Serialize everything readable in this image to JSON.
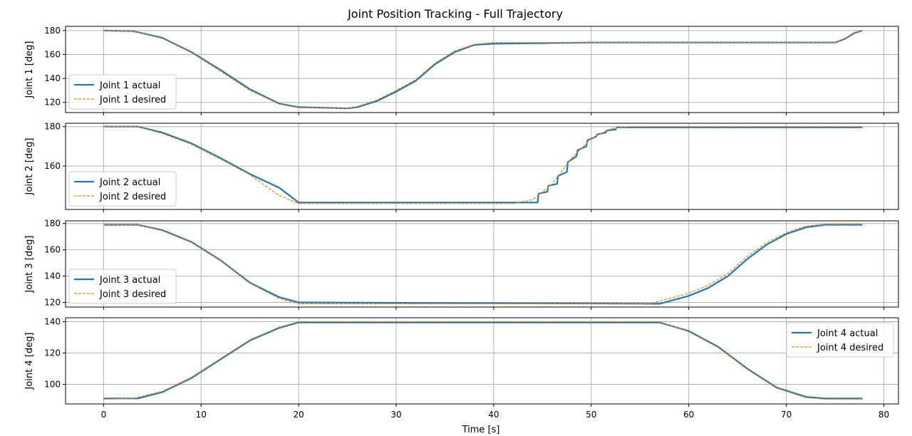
{
  "chart_data": {
    "type": "line",
    "title": "Joint Position Tracking - Full Trajectory",
    "xlabel": "Time [s]",
    "xlim": [
      -3.9,
      81.5
    ],
    "xticks": [
      0,
      10,
      20,
      30,
      40,
      50,
      60,
      70,
      80
    ],
    "grid": true,
    "colors": {
      "actual": "#1f77b4",
      "desired": "#ff7f0e",
      "grid": "#b0b0b0"
    },
    "panels": [
      {
        "ylabel": "Joint 1 [deg]",
        "ylim": [
          111.5,
          183.5
        ],
        "yticks": [
          120,
          140,
          160,
          180
        ],
        "legend_loc": "lower-left",
        "series": [
          {
            "name": "Joint 1 actual",
            "style": "solid",
            "points": [
              [
                0,
                180
              ],
              [
                3,
                179.5
              ],
              [
                6,
                174
              ],
              [
                9,
                162
              ],
              [
                12,
                147
              ],
              [
                15,
                131
              ],
              [
                18,
                119
              ],
              [
                20,
                116
              ],
              [
                25,
                115
              ],
              [
                26,
                116
              ],
              [
                28,
                121
              ],
              [
                30,
                129
              ],
              [
                32,
                138
              ],
              [
                34,
                152
              ],
              [
                36,
                162
              ],
              [
                38,
                168
              ],
              [
                40,
                169
              ],
              [
                50,
                170
              ],
              [
                75,
                170
              ],
              [
                76,
                173
              ],
              [
                77,
                178
              ],
              [
                77.8,
                180
              ]
            ]
          },
          {
            "name": "Joint 1 desired",
            "style": "dashed",
            "points": [
              [
                0,
                180
              ],
              [
                3,
                179.5
              ],
              [
                6,
                173.5
              ],
              [
                9,
                161.5
              ],
              [
                12,
                146
              ],
              [
                15,
                130
              ],
              [
                18,
                118.5
              ],
              [
                20,
                115.5
              ],
              [
                25,
                115
              ],
              [
                26,
                116.5
              ],
              [
                28,
                122
              ],
              [
                30,
                130
              ],
              [
                32,
                139
              ],
              [
                34,
                153
              ],
              [
                36,
                163
              ],
              [
                38,
                168.5
              ],
              [
                40,
                170
              ],
              [
                50,
                170
              ],
              [
                75,
                170
              ],
              [
                76,
                173.5
              ],
              [
                77,
                178.5
              ],
              [
                77.8,
                180
              ]
            ]
          }
        ]
      },
      {
        "ylabel": "Joint 2 [deg]",
        "ylim": [
          138,
          181.7
        ],
        "yticks": [
          160,
          180
        ],
        "legend_loc": "lower-left",
        "series": [
          {
            "name": "Joint 2 actual",
            "style": "solid",
            "points": [
              [
                0,
                180
              ],
              [
                3.5,
                180
              ],
              [
                6,
                177
              ],
              [
                9,
                171.5
              ],
              [
                12,
                164
              ],
              [
                15,
                156
              ],
              [
                18,
                149
              ],
              [
                20,
                141.5
              ],
              [
                44.5,
                141.5
              ],
              [
                44.6,
                146
              ],
              [
                45.5,
                147
              ],
              [
                45.6,
                150
              ],
              [
                46.5,
                151
              ],
              [
                46.6,
                155
              ],
              [
                47.5,
                157
              ],
              [
                47.6,
                162
              ],
              [
                48.5,
                165
              ],
              [
                48.6,
                168
              ],
              [
                49.5,
                170
              ],
              [
                49.6,
                173
              ],
              [
                50.5,
                175
              ],
              [
                50.6,
                176
              ],
              [
                51.5,
                177
              ],
              [
                51.6,
                178
              ],
              [
                52.5,
                178.5
              ],
              [
                52.6,
                179.6
              ],
              [
                77.8,
                179.6
              ]
            ]
          },
          {
            "name": "Joint 2 desired",
            "style": "dashed",
            "points": [
              [
                0,
                180
              ],
              [
                3.5,
                180
              ],
              [
                6,
                176.5
              ],
              [
                9,
                171
              ],
              [
                12,
                163.5
              ],
              [
                15,
                155.5
              ],
              [
                18,
                145
              ],
              [
                20,
                141
              ],
              [
                42,
                141
              ],
              [
                44,
                143
              ],
              [
                46,
                151
              ],
              [
                48,
                164
              ],
              [
                50,
                174
              ],
              [
                52,
                179
              ],
              [
                54,
                180
              ],
              [
                77.8,
                180
              ]
            ]
          }
        ]
      },
      {
        "ylabel": "Joint 3 [deg]",
        "ylim": [
          116.5,
          182
        ],
        "yticks": [
          120,
          140,
          160,
          180
        ],
        "legend_loc": "lower-left",
        "series": [
          {
            "name": "Joint 3 actual",
            "style": "solid",
            "points": [
              [
                0,
                179
              ],
              [
                3.5,
                179
              ],
              [
                6,
                175
              ],
              [
                9,
                166
              ],
              [
                12,
                152
              ],
              [
                15,
                135
              ],
              [
                18,
                124
              ],
              [
                20,
                120
              ],
              [
                57,
                119
              ],
              [
                58,
                121
              ],
              [
                60,
                125
              ],
              [
                62,
                131
              ],
              [
                64,
                140
              ],
              [
                66,
                153
              ],
              [
                68,
                164
              ],
              [
                70,
                172
              ],
              [
                72,
                177
              ],
              [
                74,
                179
              ],
              [
                77.8,
                179
              ]
            ]
          },
          {
            "name": "Joint 3 desired",
            "style": "dashed",
            "points": [
              [
                0,
                179
              ],
              [
                3.5,
                179
              ],
              [
                6,
                174.5
              ],
              [
                9,
                165.5
              ],
              [
                12,
                151.5
              ],
              [
                15,
                134.5
              ],
              [
                18,
                123
              ],
              [
                20,
                119
              ],
              [
                56,
                119
              ],
              [
                58,
                123
              ],
              [
                60,
                127
              ],
              [
                62,
                133
              ],
              [
                64,
                142
              ],
              [
                66,
                155
              ],
              [
                68,
                165.5
              ],
              [
                70,
                173
              ],
              [
                72,
                178
              ],
              [
                74,
                179.5
              ],
              [
                77.8,
                179.5
              ]
            ]
          }
        ]
      },
      {
        "ylabel": "Joint 4 [deg]",
        "ylim": [
          87.5,
          142.5
        ],
        "yticks": [
          100,
          120,
          140
        ],
        "legend_loc": "top-right",
        "series": [
          {
            "name": "Joint 4 actual",
            "style": "solid",
            "points": [
              [
                0,
                91
              ],
              [
                3.5,
                91
              ],
              [
                6,
                95
              ],
              [
                9,
                104
              ],
              [
                12,
                116
              ],
              [
                15,
                128
              ],
              [
                18,
                136
              ],
              [
                20,
                139.5
              ],
              [
                57,
                139.5
              ],
              [
                60,
                134
              ],
              [
                63,
                124
              ],
              [
                66,
                110
              ],
              [
                69,
                98
              ],
              [
                72,
                92
              ],
              [
                74,
                91
              ],
              [
                77.8,
                91
              ]
            ]
          },
          {
            "name": "Joint 4 desired",
            "style": "dashed",
            "points": [
              [
                0,
                90.5
              ],
              [
                3,
                91
              ],
              [
                6,
                95.5
              ],
              [
                9,
                104.5
              ],
              [
                12,
                116.5
              ],
              [
                15,
                128.5
              ],
              [
                18,
                136.5
              ],
              [
                20,
                140
              ],
              [
                57,
                140
              ],
              [
                60,
                133.5
              ],
              [
                63,
                123.5
              ],
              [
                66,
                109.5
              ],
              [
                69,
                97.5
              ],
              [
                72,
                91.5
              ],
              [
                74,
                90.5
              ],
              [
                77.8,
                90.5
              ]
            ]
          }
        ]
      }
    ]
  }
}
